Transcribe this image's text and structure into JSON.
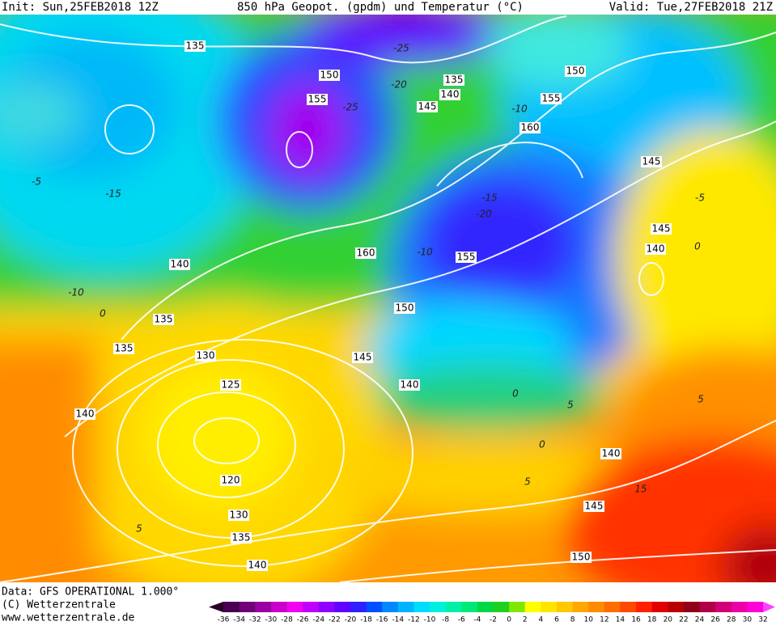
{
  "header": {
    "init": "Init: Sun,25FEB2018 12Z",
    "title": "850 hPa Geopot. (gpdm) und Temperatur (°C)",
    "valid": "Valid: Tue,27FEB2018 21Z"
  },
  "footer": {
    "data": "Data: GFS OPERATIONAL 1.000°",
    "copyright": "(C) Wetterzentrale",
    "url": "www.wetterzentrale.de"
  },
  "geopotential_labels": [
    135,
    150,
    155,
    135,
    140,
    145,
    150,
    155,
    160,
    145,
    145,
    140,
    160,
    155,
    150,
    140,
    135,
    135,
    130,
    145,
    140,
    125,
    140,
    120,
    140,
    145,
    130,
    135,
    140,
    150
  ],
  "temperature_labels": [
    -25,
    -20,
    -25,
    -10,
    -15,
    -20,
    -15,
    -10,
    0,
    -5,
    -5,
    0,
    5,
    0,
    5,
    0,
    5,
    15,
    5,
    -10
  ],
  "colorbar": {
    "labels": [
      -36,
      -34,
      -32,
      -30,
      -28,
      -26,
      -24,
      -22,
      -20,
      -18,
      -16,
      -14,
      -12,
      -10,
      -8,
      -6,
      -4,
      -2,
      0,
      2,
      4,
      6,
      8,
      10,
      12,
      14,
      16,
      18,
      20,
      22,
      24,
      26,
      28,
      30,
      32
    ],
    "colors": [
      "#2a0028",
      "#4a0050",
      "#700078",
      "#9a00a0",
      "#c800c8",
      "#f000f0",
      "#c000ff",
      "#9000ff",
      "#6000ff",
      "#3020ff",
      "#0050ff",
      "#0088ff",
      "#00b4ff",
      "#00dcff",
      "#00f0e0",
      "#00f0a8",
      "#00e878",
      "#00d848",
      "#20d020",
      "#80e800",
      "#ffff00",
      "#ffe400",
      "#ffc800",
      "#ffa800",
      "#ff8c00",
      "#ff6c00",
      "#ff4800",
      "#ff2000",
      "#e00000",
      "#b80000",
      "#900018",
      "#b00048",
      "#d00078",
      "#ec00a8",
      "#ff00d8",
      "#ff40ff"
    ]
  }
}
